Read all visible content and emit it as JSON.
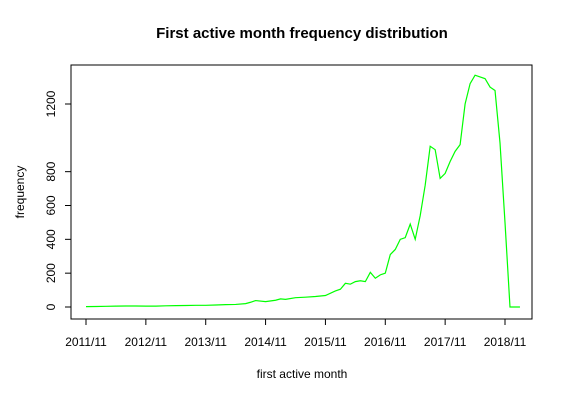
{
  "chart_data": {
    "type": "line",
    "title": "First active month frequency distribution",
    "xlabel": "first active month",
    "ylabel": "frequency",
    "x_ticks": [
      "2011/11",
      "2012/11",
      "2013/11",
      "2014/11",
      "2015/11",
      "2016/11",
      "2017/11",
      "2018/11"
    ],
    "y_ticks": [
      0,
      200,
      400,
      600,
      800,
      1200
    ],
    "ylim": [
      0,
      1400
    ],
    "grid": false,
    "series": [
      {
        "color": "#00ff00",
        "x": [
          "2011/11",
          "2012/01",
          "2012/03",
          "2012/05",
          "2012/07",
          "2012/09",
          "2012/11",
          "2013/01",
          "2013/03",
          "2013/05",
          "2013/07",
          "2013/09",
          "2013/11",
          "2014/01",
          "2014/03",
          "2014/05",
          "2014/07",
          "2014/08",
          "2014/09",
          "2014/11",
          "2015/01",
          "2015/02",
          "2015/03",
          "2015/05",
          "2015/07",
          "2015/09",
          "2015/11",
          "2016/01",
          "2016/02",
          "2016/03",
          "2016/04",
          "2016/05",
          "2016/06",
          "2016/07",
          "2016/08",
          "2016/09",
          "2016/10",
          "2016/11",
          "2016/12",
          "2017/01",
          "2017/02",
          "2017/03",
          "2017/04",
          "2017/05",
          "2017/06",
          "2017/07",
          "2017/08",
          "2017/09",
          "2017/10",
          "2017/11",
          "2017/12",
          "2018/01",
          "2018/02",
          "2018/03",
          "2018/04",
          "2018/05",
          "2018/06",
          "2018/07",
          "2018/08",
          "2018/09",
          "2018/10",
          "2018/11",
          "2018/12",
          "2019/01",
          "2019/02"
        ],
        "y": [
          2,
          3,
          4,
          5,
          6,
          6,
          5,
          5,
          7,
          8,
          9,
          10,
          10,
          12,
          14,
          15,
          20,
          28,
          38,
          32,
          40,
          48,
          45,
          55,
          58,
          62,
          68,
          95,
          105,
          140,
          135,
          150,
          155,
          150,
          205,
          170,
          190,
          200,
          310,
          340,
          400,
          410,
          490,
          400,
          540,
          720,
          950,
          930,
          760,
          790,
          860,
          920,
          960,
          1200,
          1320,
          1370,
          1360,
          1350,
          1300,
          1280,
          970,
          500,
          0,
          0,
          0
        ]
      }
    ]
  }
}
